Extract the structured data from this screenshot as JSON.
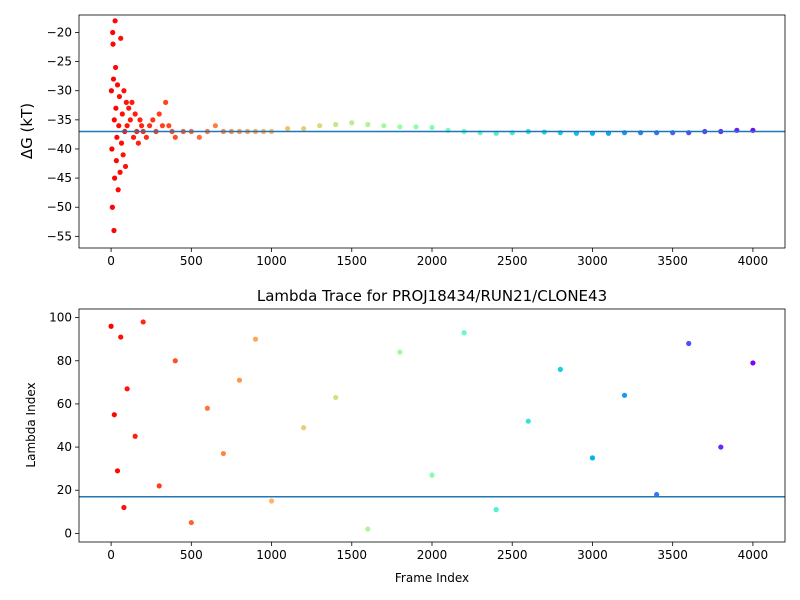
{
  "chart_data": [
    {
      "type": "scatter",
      "title": "",
      "xlabel": "",
      "ylabel": "ΔG (kT)",
      "xlim": [
        -200,
        4200
      ],
      "ylim": [
        -57,
        -17
      ],
      "xticks": [
        "0",
        "500",
        "1000",
        "1500",
        "2000",
        "2500",
        "3000",
        "3500",
        "4000"
      ],
      "yticks": [
        "−20",
        "−25",
        "−30",
        "−35",
        "−40",
        "−45",
        "−50",
        "−55"
      ],
      "hline": -37,
      "colormap": "rainbow_r",
      "marker_color_note": "points colored by frame index, red at frame 0 to violet at frame 4000",
      "hline_color": "#1f77b4",
      "series": [
        {
          "x": [
            2,
            5,
            8,
            10,
            12,
            15,
            18,
            20,
            22,
            25,
            28,
            30,
            33,
            36,
            40,
            44,
            48,
            52,
            56,
            60,
            65,
            70,
            75,
            80,
            85,
            90,
            95,
            100,
            110,
            120,
            130,
            140,
            150,
            160,
            170,
            180,
            190,
            200,
            220,
            240,
            260,
            280,
            300,
            320,
            340,
            360,
            380,
            400,
            450,
            500,
            550,
            600,
            650,
            700,
            750,
            800,
            850,
            900,
            950,
            1000,
            1100,
            1200,
            1300,
            1400,
            1500,
            1600,
            1700,
            1800,
            1900,
            2000,
            2100,
            2200,
            2300,
            2400,
            2500,
            2600,
            2700,
            2800,
            2900,
            3000,
            3100,
            3200,
            3300,
            3400,
            3500,
            3600,
            3700,
            3800,
            3900,
            4000
          ],
          "y": [
            -30,
            -40,
            -50,
            -20,
            -22,
            -28,
            -54,
            -35,
            -45,
            -18,
            -26,
            -33,
            -42,
            -38,
            -29,
            -47,
            -36,
            -31,
            -44,
            -21,
            -39,
            -34,
            -41,
            -30,
            -37,
            -43,
            -32,
            -36,
            -33,
            -35,
            -32,
            -38,
            -34,
            -37,
            -39,
            -35,
            -36,
            -37,
            -38,
            -36,
            -35,
            -37,
            -34,
            -36,
            -32,
            -36,
            -37,
            -38,
            -37,
            -37,
            -38,
            -37,
            -36,
            -37,
            -37,
            -37,
            -37,
            -37,
            -37,
            -37,
            -36.5,
            -36.5,
            -36,
            -35.8,
            -35.5,
            -35.8,
            -36,
            -36.2,
            -36.2,
            -36.3,
            -36.8,
            -37,
            -37.2,
            -37.3,
            -37.2,
            -37,
            -37.1,
            -37.2,
            -37.3,
            -37.3,
            -37.3,
            -37.2,
            -37.2,
            -37.2,
            -37.2,
            -37.2,
            -37,
            -37,
            -36.8,
            -36.8
          ]
        }
      ]
    },
    {
      "type": "scatter",
      "title": "Lambda Trace for PROJ18434/RUN21/CLONE43",
      "xlabel": "Frame Index",
      "ylabel": "Lambda Index",
      "xlim": [
        -200,
        4200
      ],
      "ylim": [
        -4,
        104
      ],
      "xticks": [
        "0",
        "500",
        "1000",
        "1500",
        "2000",
        "2500",
        "3000",
        "3500",
        "4000"
      ],
      "yticks": [
        "0",
        "20",
        "40",
        "60",
        "80",
        "100"
      ],
      "hline": 17,
      "colormap": "rainbow_r",
      "marker_color_note": "points colored by frame index, red at frame 0 to violet at frame 4000; approximately one lambda index sample in [0, 99] per frame spread uniformly, denser near frame 0 and 4000 at low indices",
      "hline_color": "#1f77b4",
      "series": [
        {
          "x": [
            0,
            20,
            40,
            60,
            80,
            100,
            150,
            200,
            300,
            400,
            500,
            600,
            700,
            800,
            900,
            1000,
            1200,
            1400,
            1600,
            1800,
            2000,
            2200,
            2400,
            2600,
            2800,
            3000,
            3200,
            3400,
            3600,
            3800,
            4000
          ],
          "y": [
            96,
            55,
            29,
            91,
            12,
            67,
            45,
            98,
            22,
            80,
            5,
            58,
            37,
            71,
            90,
            15,
            49,
            63,
            2,
            84,
            27,
            93,
            11,
            52,
            76,
            35,
            64,
            18,
            88,
            40,
            79
          ]
        }
      ]
    }
  ]
}
